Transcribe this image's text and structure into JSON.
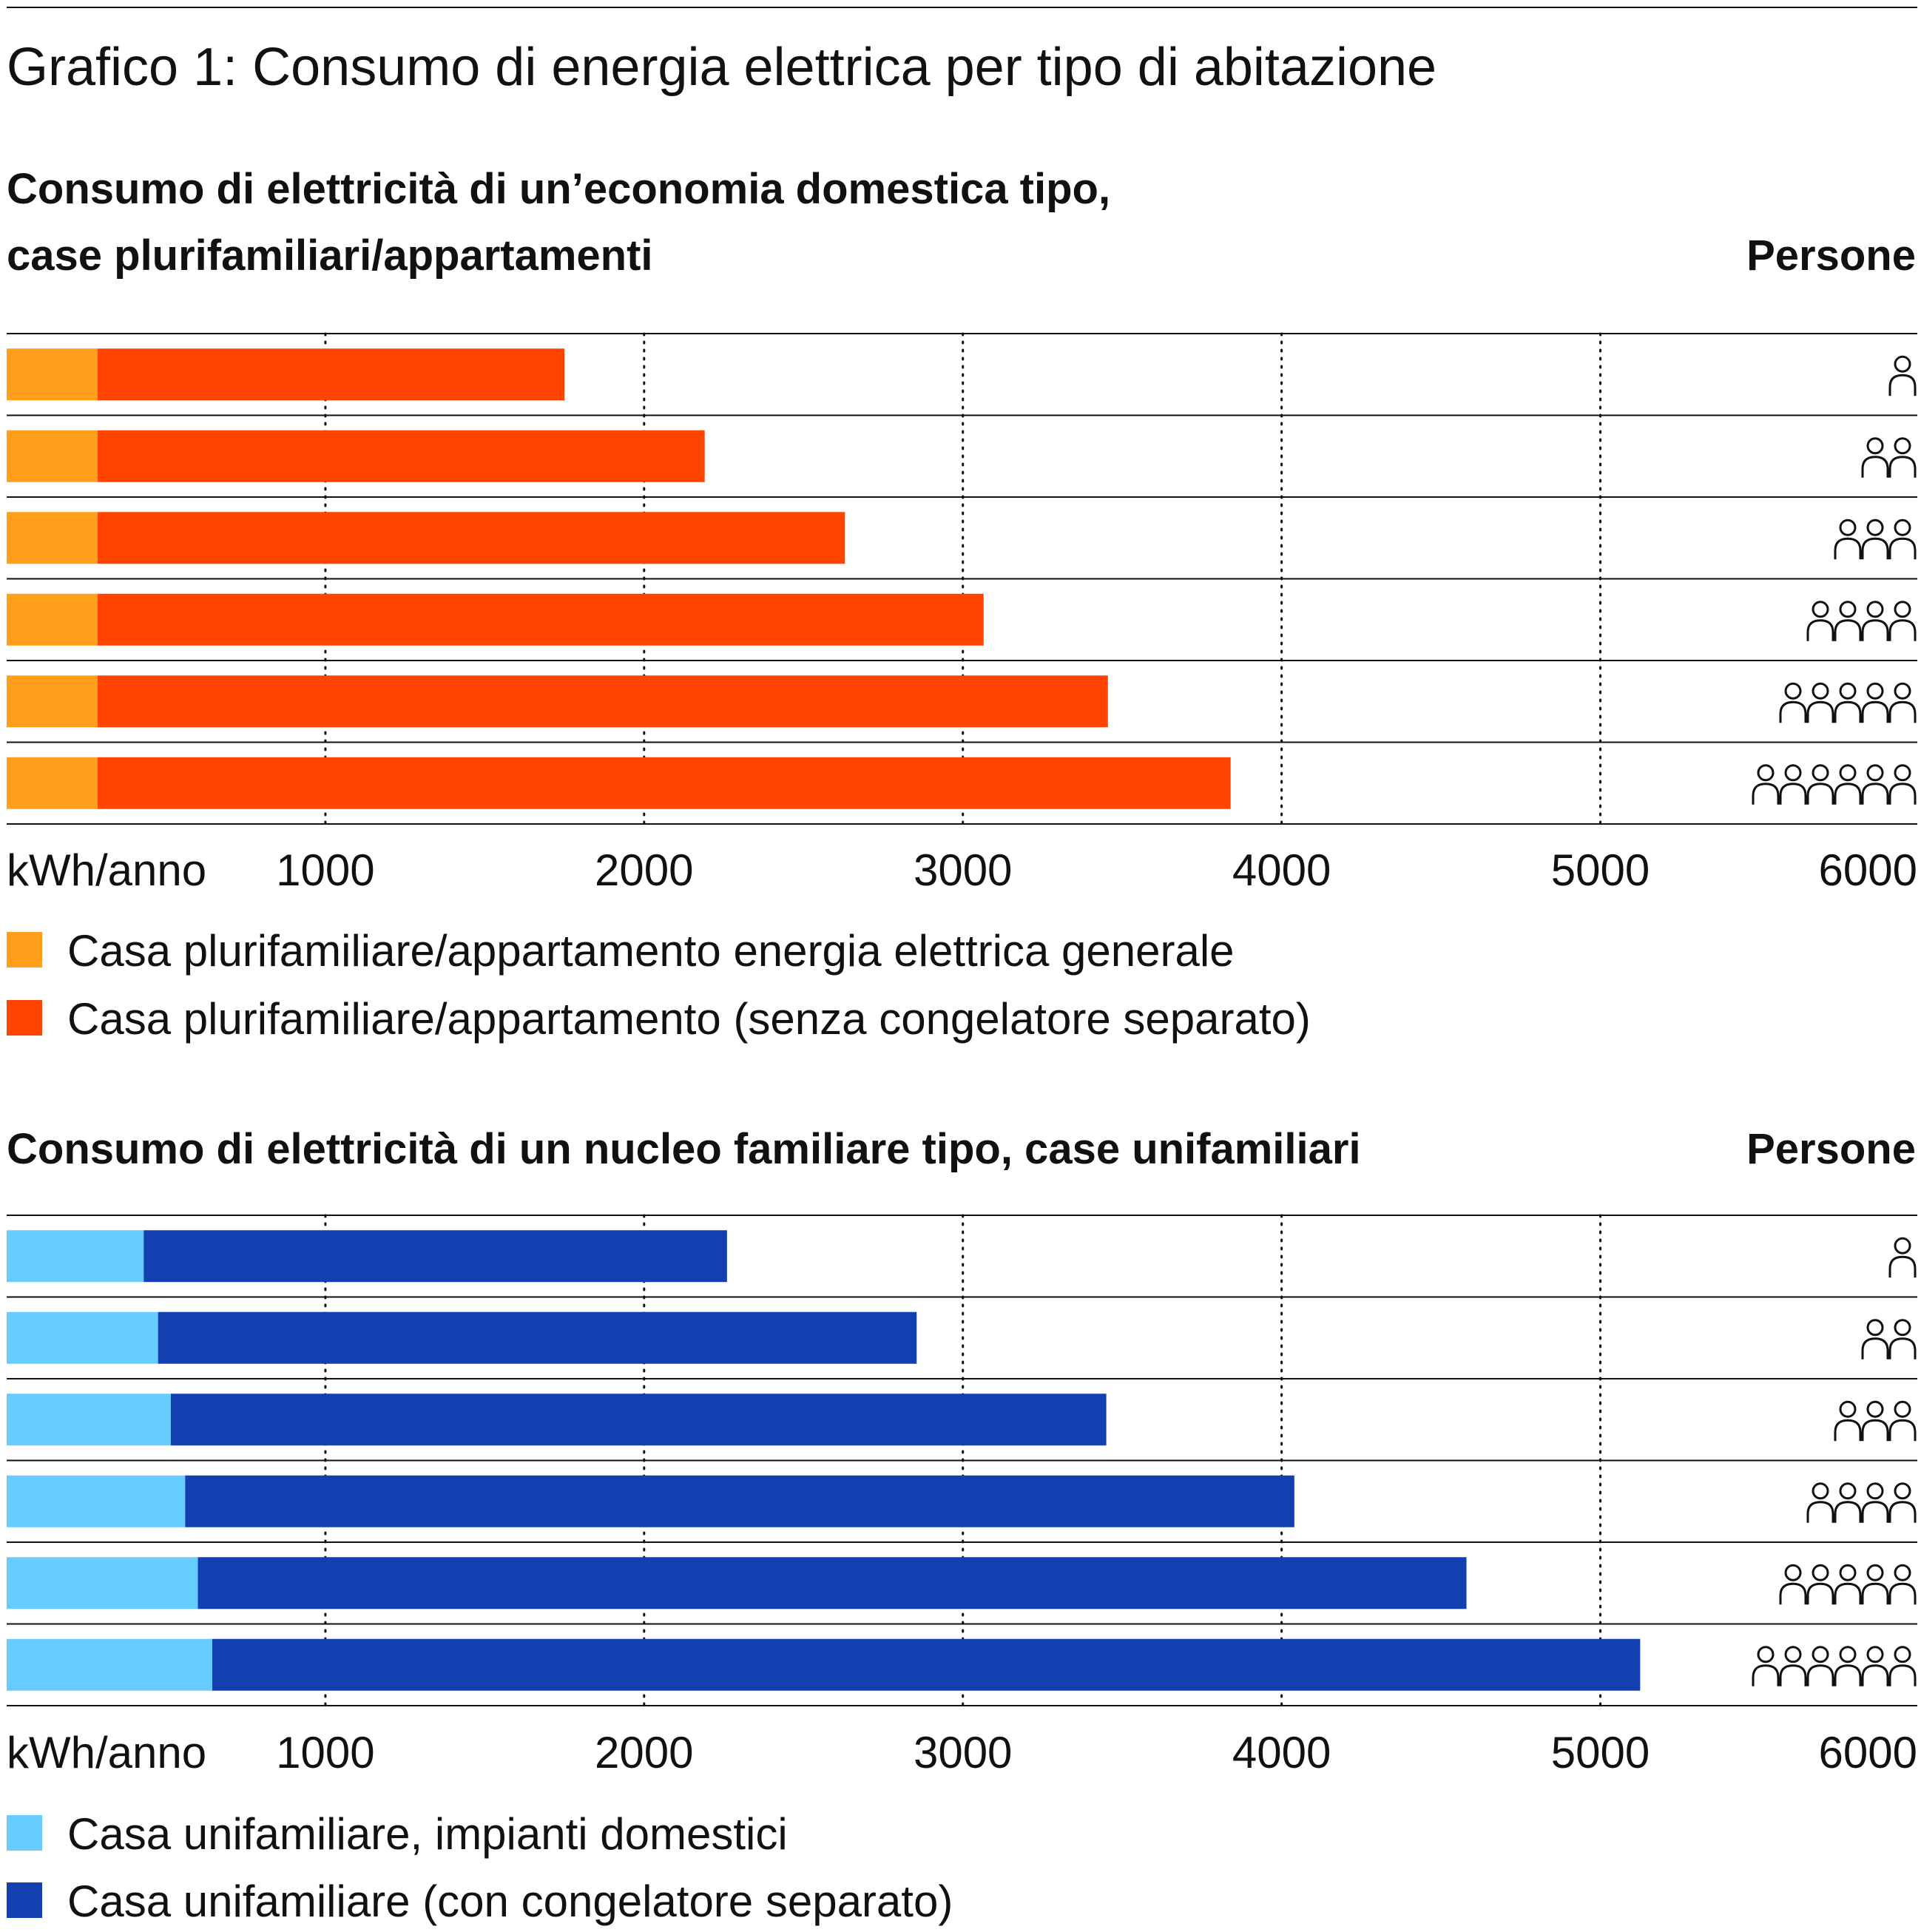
{
  "chart_data": [
    {
      "type": "bar",
      "stacked": true,
      "orientation": "horizontal",
      "title": "Grafico 1: Consumo di energia elettrica per tipo di abitazione",
      "subtitle_lines": [
        "Consumo di elettricità di un’economia domestica tipo,",
        "case plurifamiliari/appartamenti"
      ],
      "persons_label": "Persone",
      "categories": [
        1,
        2,
        3,
        4,
        5,
        6
      ],
      "series": [
        {
          "name": "Casa plurifamiliare/appartamento energia elettrica generale",
          "color": "#ff9f1c",
          "values": [
            285,
            285,
            285,
            285,
            285,
            285
          ]
        },
        {
          "name": "Casa plurifamiliare/appartamento (senza congelatore separato)",
          "color": "#ff4500",
          "values": [
            1465,
            1905,
            2345,
            2780,
            3170,
            3555
          ]
        }
      ],
      "xlabel": "kWh/anno",
      "xticks": [
        "1000",
        "2000",
        "3000",
        "4000",
        "5000",
        "6000"
      ],
      "xlim": [
        0,
        6000
      ],
      "grid": "dotted vertical"
    },
    {
      "type": "bar",
      "stacked": true,
      "orientation": "horizontal",
      "subtitle_lines": [
        "Consumo di elettricità di un nucleo familiare tipo, case unifamiliari"
      ],
      "persons_label": "Persone",
      "categories": [
        1,
        2,
        3,
        4,
        5,
        6
      ],
      "series": [
        {
          "name": "Casa unifamiliare, impianti domestici",
          "color": "#66ccff",
          "values": [
            430,
            475,
            515,
            560,
            600,
            645
          ]
        },
        {
          "name": "Casa unifamiliare (con congelatore separato)",
          "color": "#1340b0",
          "values": [
            1830,
            2380,
            2935,
            3480,
            3980,
            4480
          ]
        }
      ],
      "xlabel": "kWh/anno",
      "xticks": [
        "1000",
        "2000",
        "3000",
        "4000",
        "5000",
        "6000"
      ],
      "xlim": [
        0,
        6000
      ],
      "grid": "dotted vertical"
    }
  ]
}
